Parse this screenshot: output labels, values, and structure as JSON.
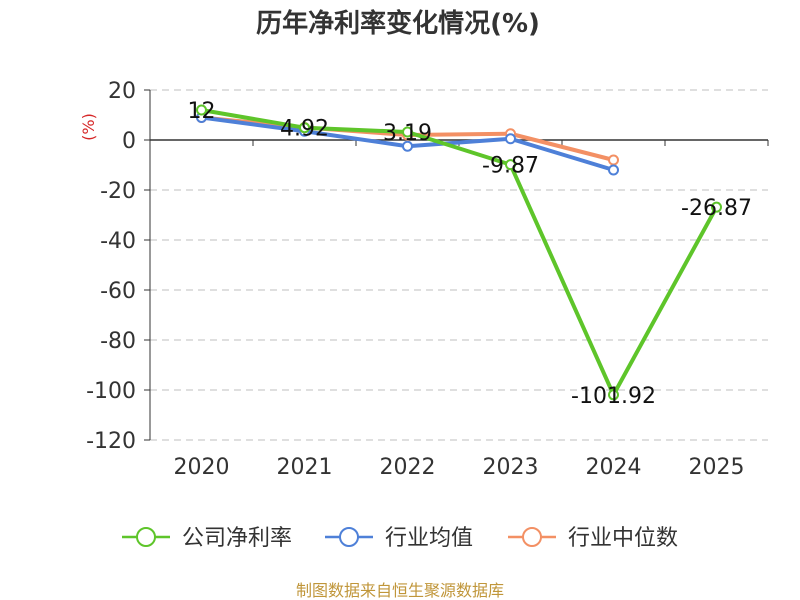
{
  "title": "历年净利率变化情况(%)",
  "footer": "制图数据来自恒生聚源数据库",
  "colors": {
    "company": "#5ec52a",
    "industry_avg": "#4e80d8",
    "industry_median": "#f39064",
    "ylabel": "#d62728",
    "footer": "#c0963a",
    "grid": "#cccccc",
    "axis": "#333333"
  },
  "chart_data": {
    "type": "line",
    "title": "历年净利率变化情况(%)",
    "ylabel": "(%)",
    "xlabel": "",
    "categories": [
      "2020",
      "2021",
      "2022",
      "2023",
      "2024",
      "2025"
    ],
    "yticks": [
      20,
      0,
      -20,
      -40,
      -60,
      -80,
      -100,
      -120
    ],
    "ylim": [
      -120,
      20
    ],
    "grid": true,
    "legend_position": "bottom",
    "series": [
      {
        "name": "公司净利率",
        "key": "company",
        "values": [
          12,
          4.92,
          3.19,
          -9.87,
          -101.92,
          -26.87
        ],
        "labels": [
          "12",
          "4.92",
          "3.19",
          "-9.87",
          "-101.92",
          "-26.87"
        ]
      },
      {
        "name": "行业均值",
        "key": "industry_avg",
        "values": [
          9,
          3.5,
          -2.5,
          0.5,
          -12,
          null
        ],
        "labels": null
      },
      {
        "name": "行业中位数",
        "key": "industry_median",
        "values": [
          9,
          5,
          2,
          2.5,
          -8,
          null
        ],
        "labels": null
      }
    ]
  }
}
